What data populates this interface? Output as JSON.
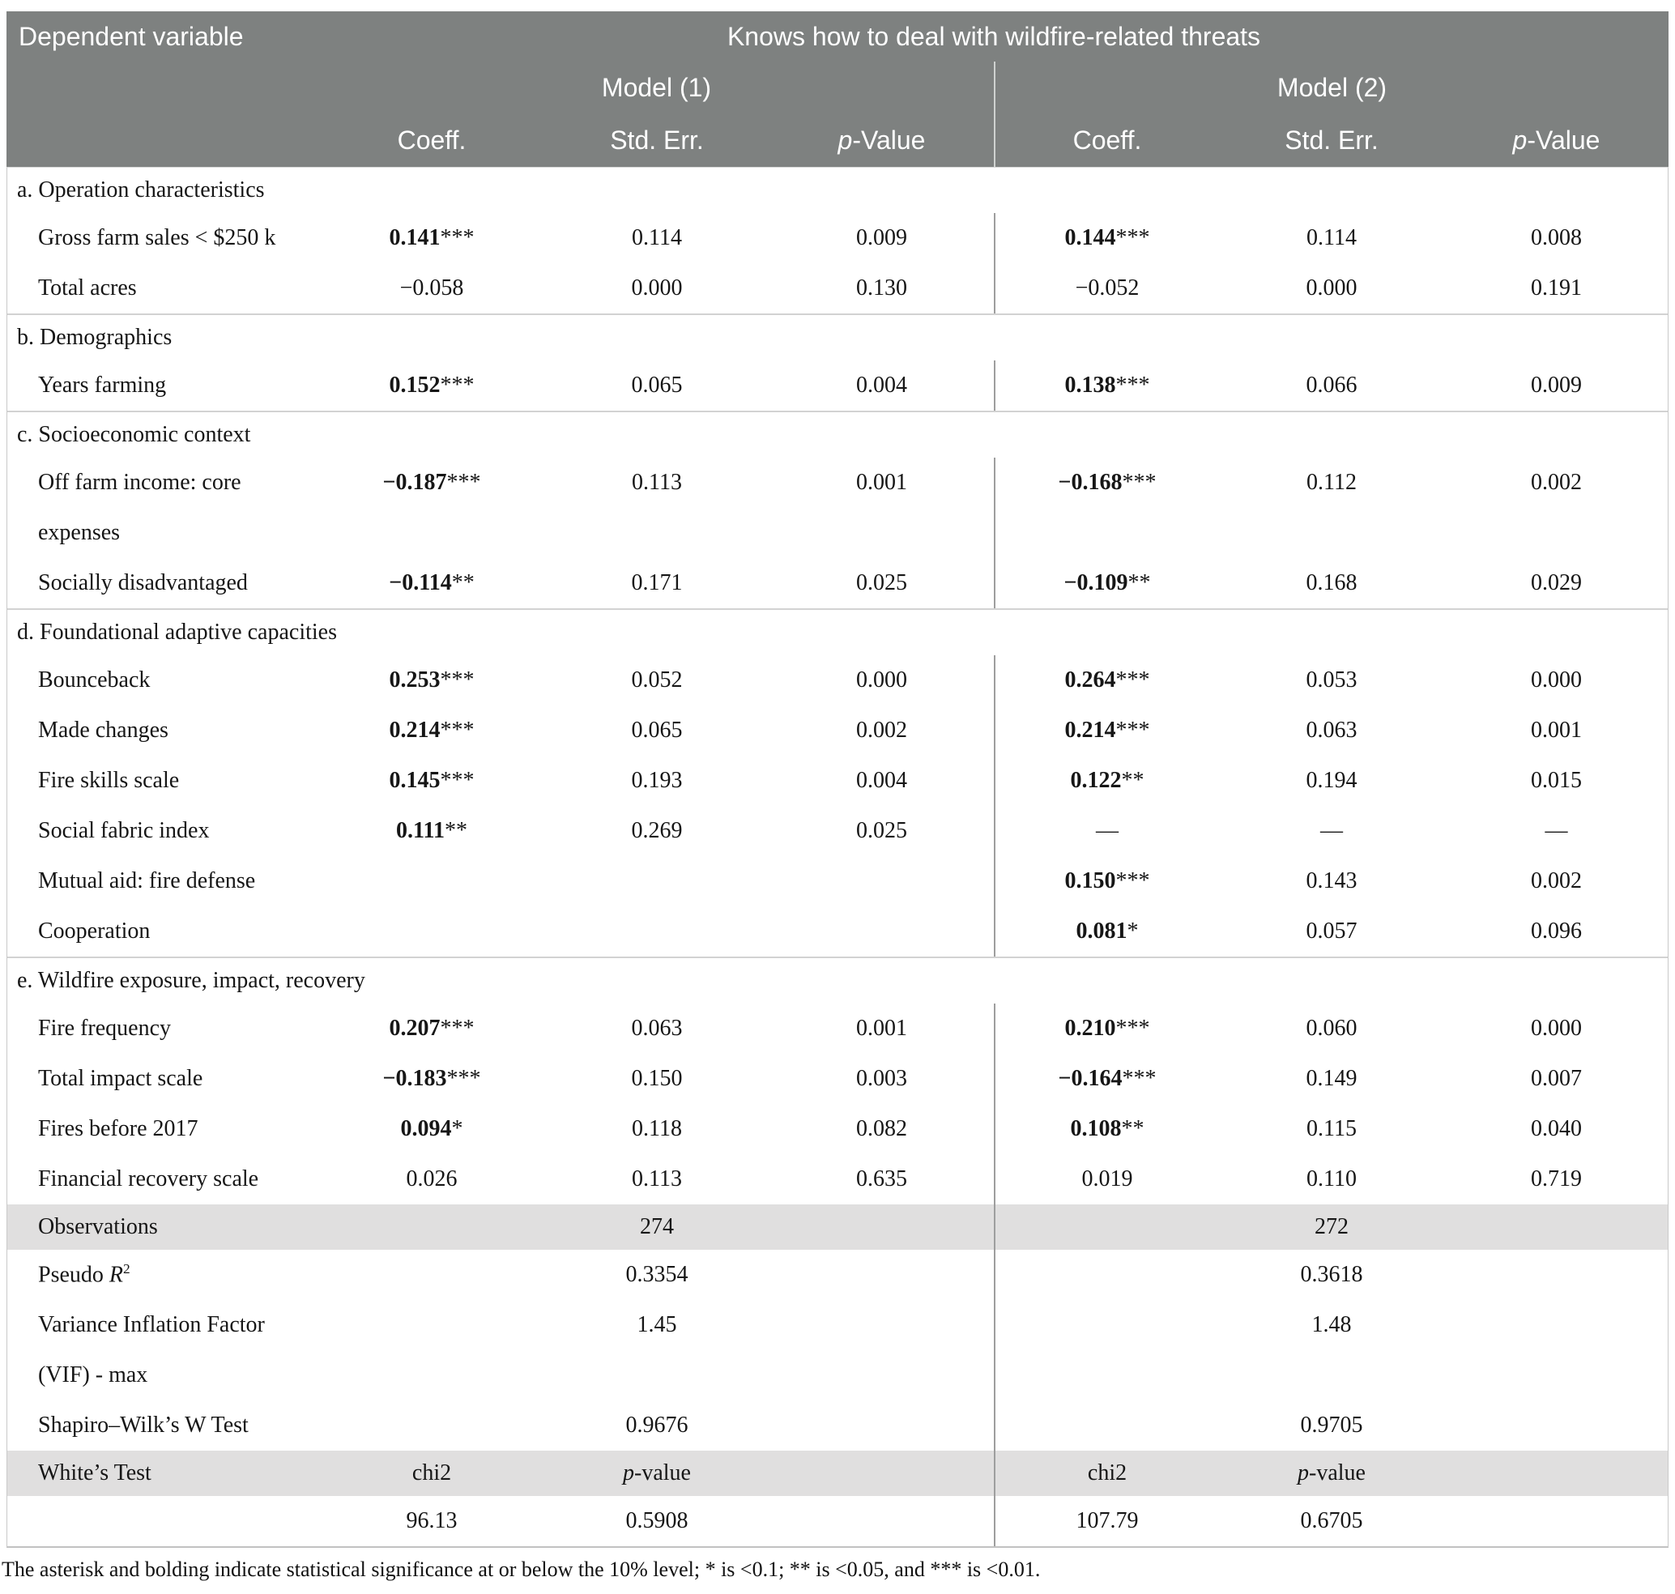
{
  "header": {
    "dependent_variable_label": "Dependent variable",
    "dependent_variable_value": "Knows how to deal with wildfire-related threats",
    "models": [
      "Model (1)",
      "Model (2)"
    ],
    "stat_columns": [
      {
        "label": "Coeff."
      },
      {
        "label": "Std. Err."
      },
      {
        "label_italic": "p",
        "label_rest": "-Value"
      }
    ]
  },
  "colors": {
    "header_bg": "#7e8180",
    "header_text": "#ffffff",
    "shaded_row_bg": "#e0dfdf",
    "body_text": "#161616",
    "section_border": "#d2d2d2",
    "model_divider": "#9e9e9e"
  },
  "sections": [
    {
      "title": "a. Operation characteristics",
      "rows": [
        {
          "label": "Gross farm sales < $250 k",
          "m1": {
            "coeff": "0.141",
            "stars": "***",
            "bold": true,
            "se": "0.114",
            "p": "0.009"
          },
          "m2": {
            "coeff": "0.144",
            "stars": "***",
            "bold": true,
            "se": "0.114",
            "p": "0.008"
          }
        },
        {
          "label": "Total acres",
          "m1": {
            "coeff": "−0.058",
            "stars": "",
            "bold": false,
            "se": "0.000",
            "p": "0.130"
          },
          "m2": {
            "coeff": "−0.052",
            "stars": "",
            "bold": false,
            "se": "0.000",
            "p": "0.191"
          }
        }
      ]
    },
    {
      "title": "b. Demographics",
      "rows": [
        {
          "label": "Years farming",
          "m1": {
            "coeff": "0.152",
            "stars": "***",
            "bold": true,
            "se": "0.065",
            "p": "0.004"
          },
          "m2": {
            "coeff": "0.138",
            "stars": "***",
            "bold": true,
            "se": "0.066",
            "p": "0.009"
          }
        }
      ]
    },
    {
      "title": "c. Socioeconomic context",
      "rows": [
        {
          "label_lines": [
            "Off farm income: core",
            "expenses"
          ],
          "tall": true,
          "m1": {
            "coeff": "−0.187",
            "stars": "***",
            "bold": true,
            "se": "0.113",
            "p": "0.001"
          },
          "m2": {
            "coeff": "−0.168",
            "stars": "***",
            "bold": true,
            "se": "0.112",
            "p": "0.002"
          }
        },
        {
          "label": "Socially disadvantaged",
          "m1": {
            "coeff": "−0.114",
            "stars": "**",
            "bold": true,
            "se": "0.171",
            "p": "0.025"
          },
          "m2": {
            "coeff": "−0.109",
            "stars": "**",
            "bold": true,
            "se": "0.168",
            "p": "0.029"
          }
        }
      ]
    },
    {
      "title": "d. Foundational adaptive capacities",
      "rows": [
        {
          "label": "Bounceback",
          "m1": {
            "coeff": "0.253",
            "stars": "***",
            "bold": true,
            "se": "0.052",
            "p": "0.000"
          },
          "m2": {
            "coeff": "0.264",
            "stars": "***",
            "bold": true,
            "se": "0.053",
            "p": "0.000"
          }
        },
        {
          "label": "Made changes",
          "m1": {
            "coeff": "0.214",
            "stars": "***",
            "bold": true,
            "se": "0.065",
            "p": "0.002"
          },
          "m2": {
            "coeff": "0.214",
            "stars": "***",
            "bold": true,
            "se": "0.063",
            "p": "0.001"
          }
        },
        {
          "label": "Fire skills scale",
          "m1": {
            "coeff": "0.145",
            "stars": "***",
            "bold": true,
            "se": "0.193",
            "p": "0.004"
          },
          "m2": {
            "coeff": "0.122",
            "stars": "**",
            "bold": true,
            "se": "0.194",
            "p": "0.015"
          }
        },
        {
          "label": "Social fabric index",
          "m1": {
            "coeff": "0.111",
            "stars": "**",
            "bold": true,
            "se": "0.269",
            "p": "0.025"
          },
          "m2": {
            "coeff": "—",
            "stars": "",
            "bold": false,
            "se": "—",
            "p": "—"
          }
        },
        {
          "label": "Mutual aid: fire defense",
          "m1": null,
          "m2": {
            "coeff": "0.150",
            "stars": "***",
            "bold": true,
            "se": "0.143",
            "p": "0.002"
          }
        },
        {
          "label": "Cooperation",
          "m1": null,
          "m2": {
            "coeff": "0.081",
            "stars": "*",
            "bold": true,
            "se": "0.057",
            "p": "0.096"
          }
        }
      ]
    },
    {
      "title": "e. Wildfire exposure, impact, recovery",
      "rows": [
        {
          "label": "Fire frequency",
          "m1": {
            "coeff": "0.207",
            "stars": "***",
            "bold": true,
            "se": "0.063",
            "p": "0.001"
          },
          "m2": {
            "coeff": "0.210",
            "stars": "***",
            "bold": true,
            "se": "0.060",
            "p": "0.000"
          }
        },
        {
          "label": "Total impact scale",
          "m1": {
            "coeff": "−0.183",
            "stars": "***",
            "bold": true,
            "se": "0.150",
            "p": "0.003"
          },
          "m2": {
            "coeff": "−0.164",
            "stars": "***",
            "bold": true,
            "se": "0.149",
            "p": "0.007"
          }
        },
        {
          "label": "Fires before 2017",
          "m1": {
            "coeff": "0.094",
            "stars": "*",
            "bold": true,
            "se": "0.118",
            "p": "0.082"
          },
          "m2": {
            "coeff": "0.108",
            "stars": "**",
            "bold": true,
            "se": "0.115",
            "p": "0.040"
          }
        },
        {
          "label": "Financial recovery scale",
          "m1": {
            "coeff": "0.026",
            "stars": "",
            "bold": false,
            "se": "0.113",
            "p": "0.635"
          },
          "m2": {
            "coeff": "0.019",
            "stars": "",
            "bold": false,
            "se": "0.110",
            "p": "0.719"
          }
        }
      ]
    }
  ],
  "summary": [
    {
      "label": "Observations",
      "shaded": true,
      "m1": "274",
      "m2": "272"
    },
    {
      "label_prefix": "Pseudo ",
      "label_symbol": "R",
      "label_sup": "2",
      "m1": "0.3354",
      "m2": "0.3618"
    },
    {
      "label_lines": [
        "Variance Inflation Factor",
        "(VIF) - max"
      ],
      "tall": true,
      "m1": "1.45",
      "m2": "1.48"
    },
    {
      "label": "Shapiro–Wilk’s W Test",
      "m1": "0.9676",
      "m2": "0.9705"
    }
  ],
  "whites_test": {
    "label": "White’s Test",
    "col_headers": [
      {
        "label": "chi2"
      },
      {
        "label_italic": "p",
        "label_rest": "-value"
      }
    ],
    "m1_values": [
      "96.13",
      "0.5908"
    ],
    "m2_values": [
      "107.79",
      "0.6705"
    ]
  },
  "footnote": "The asterisk and bolding indicate statistical significance at or below the 10% level; * is <0.1; ** is <0.05, and *** is <0.01."
}
